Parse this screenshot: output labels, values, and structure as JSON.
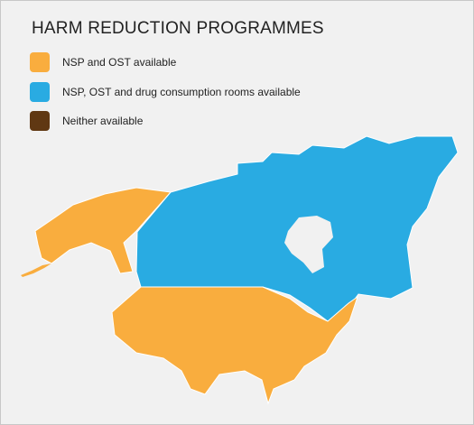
{
  "header": {
    "title": "HARM REDUCTION PROGRAMMES"
  },
  "legend": [
    {
      "label": "NSP and OST available",
      "color": "#f9ad3e"
    },
    {
      "label": "NSP, OST and drug consumption rooms available",
      "color": "#29abe2"
    },
    {
      "label": "Neither available",
      "color": "#603813"
    }
  ]
}
